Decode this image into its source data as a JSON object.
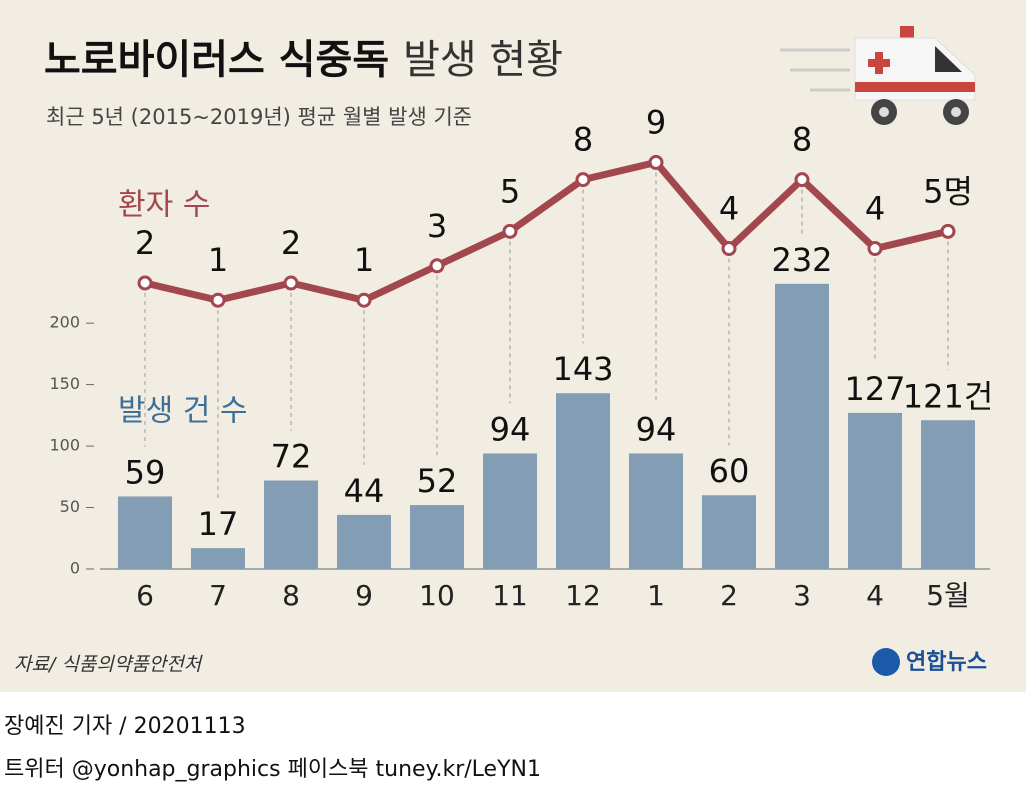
{
  "chart_data": {
    "type": "combo",
    "title_bold": "노로바이러스 식중독",
    "title_light": "발생 현황",
    "subtitle": "최근 5년 (2015~2019년) 평균 월별 발생 기준",
    "categories": [
      "6",
      "7",
      "8",
      "9",
      "10",
      "11",
      "12",
      "1",
      "2",
      "3",
      "4",
      "5월"
    ],
    "series": [
      {
        "name": "발생 건 수",
        "type": "bar",
        "color": "#829db4",
        "values": [
          59,
          17,
          72,
          44,
          52,
          94,
          143,
          94,
          60,
          232,
          127,
          121
        ],
        "value_labels": [
          "59",
          "17",
          "72",
          "44",
          "52",
          "94",
          "143",
          "94",
          "60",
          "232",
          "127",
          "121건"
        ]
      },
      {
        "name": "환자 수",
        "type": "line",
        "axis": "y2",
        "color": "#a3474f",
        "values": [
          2,
          1,
          2,
          1,
          3,
          5,
          8,
          9,
          4,
          8,
          4,
          5
        ],
        "value_labels": [
          "2",
          "1",
          "2",
          "1",
          "3",
          "5",
          "8",
          "9",
          "4",
          "8",
          "4",
          "5명"
        ]
      }
    ],
    "ylim": [
      0,
      349
    ],
    "yticks": [
      0,
      50,
      100,
      150,
      200
    ],
    "y2lim": [
      -14.6,
      10.3
    ],
    "source": "자료/ 식품의약품안전처",
    "logo": "연합뉴스",
    "byline": "장예진 기자 / 20201113",
    "social": "트위터 @yonhap_graphics  페이스북 tuney.kr/LeYN1"
  }
}
